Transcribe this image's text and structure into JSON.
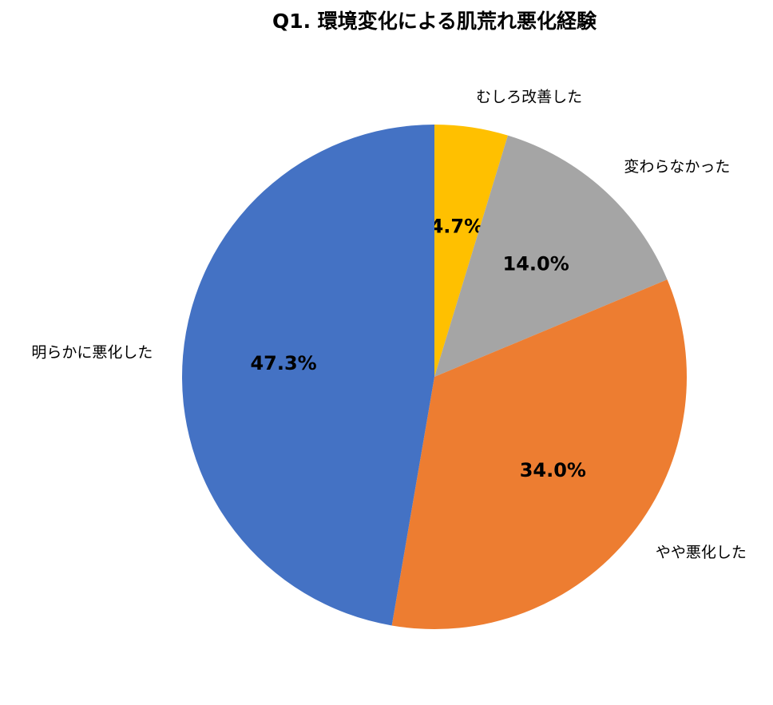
{
  "chart_data": {
    "type": "pie",
    "title": "Q1. 環境変化による肌荒れ悪化経験",
    "categories": [
      "むしろ改善した",
      "変わらなかった",
      "やや悪化した",
      "明らかに悪化した"
    ],
    "values": [
      4.7,
      14.0,
      34.0,
      47.3
    ],
    "value_labels": [
      "4.7%",
      "14.0%",
      "34.0%",
      "47.3%"
    ],
    "colors": [
      "#ffc000",
      "#a5a5a5",
      "#ed7d31",
      "#4472c4"
    ]
  }
}
